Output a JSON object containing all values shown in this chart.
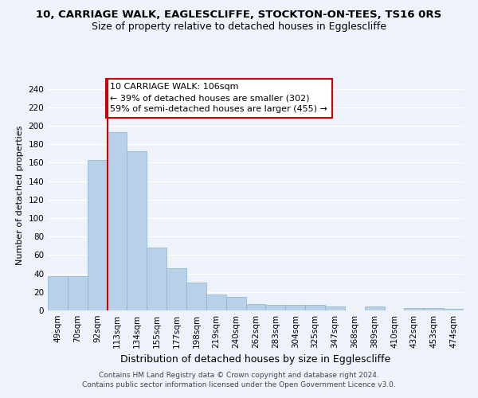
{
  "title": "10, CARRIAGE WALK, EAGLESCLIFFE, STOCKTON-ON-TEES, TS16 0RS",
  "subtitle": "Size of property relative to detached houses in Egglescliffe",
  "xlabel": "Distribution of detached houses by size in Egglescliffe",
  "ylabel": "Number of detached properties",
  "categories": [
    "49sqm",
    "70sqm",
    "92sqm",
    "113sqm",
    "134sqm",
    "155sqm",
    "177sqm",
    "198sqm",
    "219sqm",
    "240sqm",
    "262sqm",
    "283sqm",
    "304sqm",
    "325sqm",
    "347sqm",
    "368sqm",
    "389sqm",
    "410sqm",
    "432sqm",
    "453sqm",
    "474sqm"
  ],
  "values": [
    37,
    37,
    163,
    193,
    172,
    68,
    46,
    30,
    17,
    15,
    7,
    6,
    6,
    6,
    4,
    0,
    4,
    0,
    3,
    3,
    2
  ],
  "bar_color": "#b8d0e8",
  "bar_edge_color": "#8ab0cc",
  "vline_x": 2.5,
  "vline_color": "#cc0000",
  "annotation_text": "10 CARRIAGE WALK: 106sqm\n← 39% of detached houses are smaller (302)\n59% of semi-detached houses are larger (455) →",
  "annotation_box_color": "#ffffff",
  "annotation_box_edge_color": "#cc0000",
  "ylim": [
    0,
    250
  ],
  "yticks": [
    0,
    20,
    40,
    60,
    80,
    100,
    120,
    140,
    160,
    180,
    200,
    220,
    240
  ],
  "background_color": "#eef2fb",
  "grid_color": "#ffffff",
  "footer": "Contains HM Land Registry data © Crown copyright and database right 2024.\nContains public sector information licensed under the Open Government Licence v3.0.",
  "title_fontsize": 9.5,
  "subtitle_fontsize": 9,
  "xlabel_fontsize": 9,
  "ylabel_fontsize": 8,
  "tick_fontsize": 7.5,
  "annotation_fontsize": 8,
  "footer_fontsize": 6.5
}
